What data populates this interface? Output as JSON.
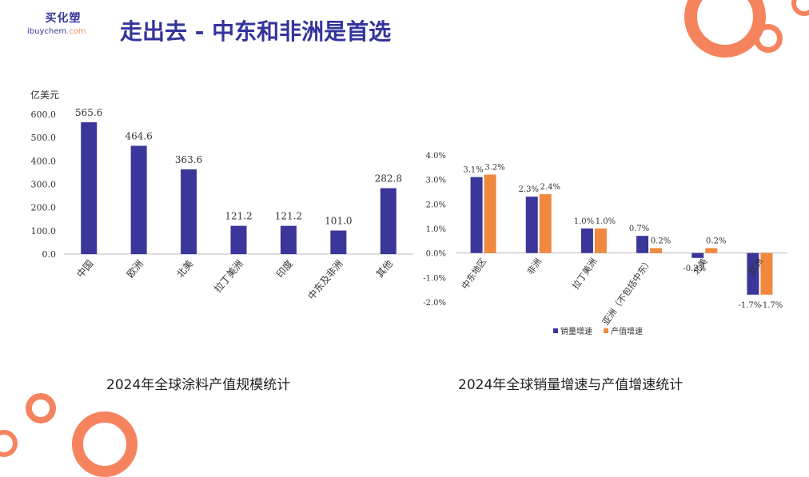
{
  "logo": {
    "top": "买化塑",
    "bottom_main": "ibuychem",
    "bottom_suffix": ".com"
  },
  "title": "走出去 - 中东和非洲是首选",
  "colors": {
    "navy": "#3b3699",
    "orange": "#f0883e",
    "accent": "#f5845e"
  },
  "chart_data": [
    {
      "type": "bar",
      "title": "2024年全球涂料产值规模统计",
      "ylabel": "亿美元",
      "ylim": [
        0,
        600
      ],
      "yticks": [
        "0.0",
        "100.0",
        "200.0",
        "300.0",
        "400.0",
        "500.0",
        "600.0"
      ],
      "categories": [
        "中国",
        "欧洲",
        "北美",
        "拉丁美洲",
        "印度",
        "中东及非洲",
        "其他"
      ],
      "values": [
        565.6,
        464.6,
        363.6,
        121.2,
        121.2,
        101.0,
        282.8
      ],
      "labels": [
        "565.6",
        "464.6",
        "363.6",
        "121.2",
        "121.2",
        "101.0",
        "282.8"
      ]
    },
    {
      "type": "bar",
      "title": "2024年全球销量增速与产值增速统计",
      "ylim": [
        -2,
        4
      ],
      "yticks": [
        "-2.0%",
        "-1.0%",
        "0.0%",
        "1.0%",
        "2.0%",
        "3.0%",
        "4.0%"
      ],
      "categories": [
        "中东地区",
        "非洲",
        "拉丁美洲",
        "亚洲（不包括中东）",
        "北美",
        "欧洲"
      ],
      "series": [
        {
          "name": "销量增速",
          "values": [
            3.1,
            2.3,
            1.0,
            0.7,
            -0.2,
            -1.7
          ],
          "labels": [
            "3.1%",
            "2.3%",
            "1.0%",
            "0.7%",
            "-0.2%",
            "-1.7%"
          ]
        },
        {
          "name": "产值增速",
          "values": [
            3.2,
            2.4,
            1.0,
            0.2,
            0.2,
            -1.7
          ],
          "labels": [
            "3.2%",
            "2.4%",
            "1.0%",
            "0.2%",
            "0.2%",
            "-1.7%"
          ]
        }
      ],
      "legend": "bottom"
    }
  ]
}
